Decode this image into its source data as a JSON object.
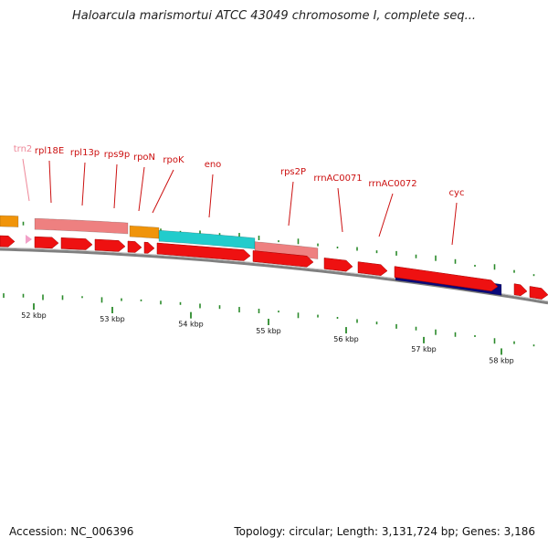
{
  "title": "Haloarcula marismortui ATCC 43049 chromosome I, complete seq...",
  "footer": {
    "accession": "Accession: NC_006396",
    "summary": "Topology: circular; Length: 3,131,724 bp; Genes: 3,186"
  },
  "colors": {
    "gene": "#ee1111",
    "rRNA": "#ee8080",
    "tRNA_orange": "#f0940a",
    "tRNA_pink": "#f2a0c8",
    "cyan": "#22cccc",
    "navy": "#0a0a7a",
    "label": "#cc1111",
    "label_pale": "#ee8899",
    "tick": "#2a8a2a",
    "backbone": "#808080"
  },
  "gene_labels": [
    {
      "text": "trn2",
      "pale": true
    },
    {
      "text": "rpl18E"
    },
    {
      "text": "rpl13p"
    },
    {
      "text": "rps9p"
    },
    {
      "text": "rpoN"
    },
    {
      "text": "rpoK"
    },
    {
      "text": "eno"
    },
    {
      "text": "rps2P"
    },
    {
      "text": "rrnAC0071"
    },
    {
      "text": "rrnAC0072"
    },
    {
      "text": "cyc"
    }
  ],
  "kbp_labels": [
    "52 kbp",
    "53 kbp",
    "54 kbp",
    "55 kbp",
    "56 kbp",
    "57 kbp",
    "58 kbp"
  ]
}
